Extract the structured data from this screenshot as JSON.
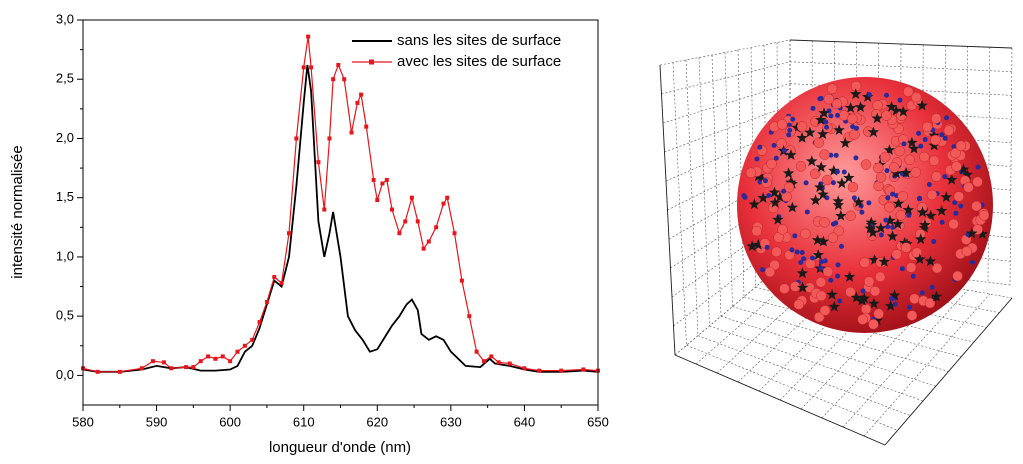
{
  "chart_data": {
    "type": "line",
    "x_label": "longueur d'onde (nm)",
    "y_label": "intensité normalisée",
    "xlim": [
      580,
      650
    ],
    "xticks": [
      580,
      590,
      600,
      610,
      620,
      630,
      640,
      650
    ],
    "ylim": [
      -0.25,
      3.0
    ],
    "yticks": [
      {
        "value": 0,
        "label": "0,0"
      },
      {
        "value": 0.5,
        "label": "0,5"
      },
      {
        "value": 1,
        "label": "1,0"
      },
      {
        "value": 1.5,
        "label": "1,5"
      },
      {
        "value": 2,
        "label": "2,0"
      },
      {
        "value": 2.5,
        "label": "2,5"
      },
      {
        "value": 3,
        "label": "3,0"
      }
    ],
    "legend": "top-right",
    "series": [
      {
        "name": "sans les sites de surface",
        "color": "#000000",
        "marker": "none",
        "x": [
          580,
          582,
          585,
          588,
          590,
          592,
          594,
          596,
          598,
          600,
          601,
          602,
          603,
          604,
          605,
          606,
          607,
          608,
          609,
          610,
          610.5,
          611,
          612,
          612.8,
          613.5,
          614,
          615,
          616,
          617,
          618,
          619,
          620,
          621,
          622,
          623,
          623.5,
          624,
          624.7,
          625.5,
          626,
          627,
          628,
          629,
          630,
          632,
          634,
          635.3,
          636,
          638,
          640,
          642,
          645,
          648,
          650
        ],
        "values": [
          0.05,
          0.03,
          0.03,
          0.05,
          0.08,
          0.06,
          0.07,
          0.04,
          0.04,
          0.05,
          0.08,
          0.2,
          0.25,
          0.4,
          0.6,
          0.8,
          0.75,
          1.0,
          1.6,
          2.3,
          2.62,
          2.4,
          1.3,
          1.0,
          1.2,
          1.38,
          1.0,
          0.5,
          0.38,
          0.3,
          0.2,
          0.22,
          0.32,
          0.42,
          0.5,
          0.55,
          0.6,
          0.64,
          0.55,
          0.35,
          0.3,
          0.33,
          0.3,
          0.2,
          0.08,
          0.07,
          0.14,
          0.1,
          0.08,
          0.05,
          0.03,
          0.03,
          0.04,
          0.03
        ]
      },
      {
        "name": "avec les sites de surface",
        "color": "#e8151b",
        "marker": "square",
        "x": [
          580,
          582,
          585,
          588,
          589.5,
          591,
          592,
          594,
          595,
          596,
          597,
          598,
          599,
          600,
          601,
          602,
          603,
          604,
          605,
          606,
          607,
          608,
          609,
          610,
          610.6,
          611,
          612,
          612.8,
          613.5,
          614,
          614.7,
          615.5,
          616.5,
          617.3,
          617.8,
          618.5,
          619.5,
          620,
          620.7,
          621.3,
          622,
          623,
          623.8,
          624.7,
          625.5,
          626.3,
          627,
          628,
          629,
          629.5,
          630.5,
          631.5,
          632.5,
          633.5,
          634.5,
          635.5,
          636.5,
          638,
          640,
          642,
          645,
          648,
          650
        ],
        "values": [
          0.06,
          0.03,
          0.03,
          0.06,
          0.12,
          0.11,
          0.06,
          0.07,
          0.07,
          0.12,
          0.16,
          0.14,
          0.16,
          0.12,
          0.2,
          0.25,
          0.3,
          0.45,
          0.62,
          0.83,
          0.78,
          1.2,
          2.0,
          2.6,
          2.86,
          2.6,
          1.8,
          1.4,
          2.0,
          2.5,
          2.62,
          2.5,
          2.05,
          2.3,
          2.37,
          2.1,
          1.65,
          1.48,
          1.62,
          1.65,
          1.4,
          1.2,
          1.3,
          1.5,
          1.3,
          1.07,
          1.13,
          1.25,
          1.45,
          1.5,
          1.2,
          0.8,
          0.5,
          0.2,
          0.12,
          0.16,
          0.11,
          0.1,
          0.06,
          0.04,
          0.04,
          0.05,
          0.04
        ]
      }
    ]
  }
}
